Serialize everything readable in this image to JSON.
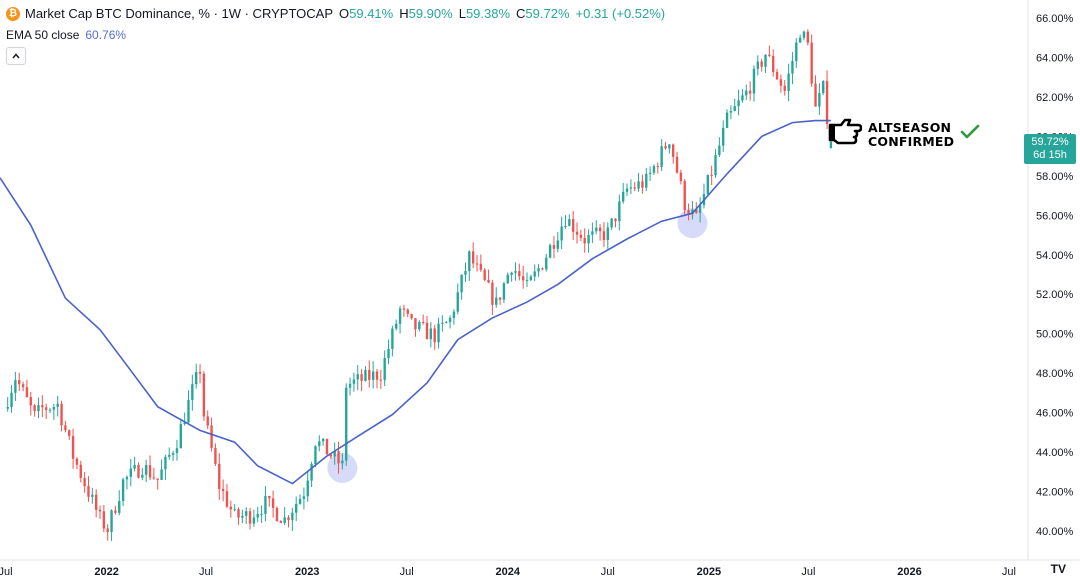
{
  "header": {
    "coin_symbol": "₿",
    "title": "Market Cap BTC Dominance, % · 1W · CRYPTOCAP",
    "ohlc": [
      {
        "label": "O",
        "value": "59.41%"
      },
      {
        "label": "H",
        "value": "59.90%"
      },
      {
        "label": "L",
        "value": "59.38%"
      },
      {
        "label": "C",
        "value": "59.72%"
      }
    ],
    "change": "+0.31 (+0.52%)"
  },
  "indicator": {
    "label": "EMA 50 close",
    "value": "60.76%"
  },
  "collapse_icon": "chevron-up-icon",
  "price_tag": {
    "price": "59.72%",
    "countdown": "6d 15h"
  },
  "annotation": {
    "line1": "ALTSEASON",
    "line2": "CONFIRMED",
    "icon": "pointing-hand-icon",
    "check_icon": "check-mark-icon"
  },
  "footer_logo": "TV",
  "colors": {
    "up": "#26a69a",
    "down": "#ef5350",
    "ema": "#4a62c9",
    "highlight": "#c9cdf5",
    "check": "#2e9a3a"
  },
  "chart_data": {
    "type": "candlestick",
    "interval": "1W",
    "ylim": [
      39.0,
      66.5
    ],
    "y_ticks": [
      "40.00%",
      "42.00%",
      "44.00%",
      "46.00%",
      "48.00%",
      "50.00%",
      "52.00%",
      "54.00%",
      "56.00%",
      "58.00%",
      "60.00%",
      "62.00%",
      "64.00%",
      "66.00%"
    ],
    "x_range": [
      "2021-06-21",
      "2026-08-01"
    ],
    "x_ticks": [
      {
        "label": "Jul",
        "date": "2021-07-01"
      },
      {
        "label": "2022",
        "date": "2022-01-01"
      },
      {
        "label": "Jul",
        "date": "2022-07-01"
      },
      {
        "label": "2023",
        "date": "2023-01-01"
      },
      {
        "label": "Jul",
        "date": "2023-07-01"
      },
      {
        "label": "2024",
        "date": "2024-01-01"
      },
      {
        "label": "Jul",
        "date": "2024-07-01"
      },
      {
        "label": "2025",
        "date": "2025-01-01"
      },
      {
        "label": "Jul",
        "date": "2025-07-01"
      },
      {
        "label": "2026",
        "date": "2026-01-01"
      },
      {
        "label": "Jul",
        "date": "2026-07-01"
      }
    ],
    "grid": false,
    "close_path": [
      [
        "2021-06-28",
        46.2
      ],
      [
        "2021-07-19",
        47.8
      ],
      [
        "2021-08-23",
        45.8
      ],
      [
        "2021-09-06",
        46.2
      ],
      [
        "2021-10-04",
        46.4
      ],
      [
        "2021-11-01",
        43.8
      ],
      [
        "2021-12-20",
        40.6
      ],
      [
        "2022-01-03",
        40.1
      ],
      [
        "2022-01-31",
        42.5
      ],
      [
        "2022-03-07",
        43.3
      ],
      [
        "2022-04-04",
        42.6
      ],
      [
        "2022-05-09",
        44.6
      ],
      [
        "2022-06-06",
        47.1
      ],
      [
        "2022-06-20",
        48.2
      ],
      [
        "2022-06-27",
        45.9
      ],
      [
        "2022-07-25",
        42.3
      ],
      [
        "2022-08-22",
        40.7
      ],
      [
        "2022-09-19",
        40.8
      ],
      [
        "2022-10-17",
        41.4
      ],
      [
        "2022-11-21",
        40.6
      ],
      [
        "2022-12-26",
        42.0
      ],
      [
        "2023-01-16",
        44.6
      ],
      [
        "2023-03-06",
        43.3
      ],
      [
        "2023-03-13",
        47.4
      ],
      [
        "2023-05-15",
        48.0
      ],
      [
        "2023-06-19",
        51.2
      ],
      [
        "2023-07-10",
        50.4
      ],
      [
        "2023-08-21",
        49.9
      ],
      [
        "2023-09-18",
        50.7
      ],
      [
        "2023-10-23",
        53.9
      ],
      [
        "2023-12-11",
        51.5
      ],
      [
        "2024-01-08",
        53.5
      ],
      [
        "2024-02-05",
        52.3
      ],
      [
        "2024-03-04",
        53.6
      ],
      [
        "2024-04-15",
        55.9
      ],
      [
        "2024-05-20",
        54.8
      ],
      [
        "2024-07-01",
        55.1
      ],
      [
        "2024-08-05",
        57.3
      ],
      [
        "2024-09-09",
        57.7
      ],
      [
        "2024-10-21",
        59.9
      ],
      [
        "2024-11-18",
        56.6
      ],
      [
        "2024-12-09",
        55.8
      ],
      [
        "2025-01-06",
        58.2
      ],
      [
        "2025-02-03",
        60.8
      ],
      [
        "2025-03-10",
        62.2
      ],
      [
        "2025-04-14",
        64.2
      ],
      [
        "2025-05-19",
        62.3
      ],
      [
        "2025-06-16",
        65.4
      ],
      [
        "2025-06-30",
        64.6
      ],
      [
        "2025-07-14",
        61.4
      ],
      [
        "2025-07-28",
        62.4
      ],
      [
        "2025-08-11",
        59.7
      ]
    ],
    "series": [
      {
        "name": "EMA 50 close",
        "type": "line",
        "points": [
          [
            "2021-06-21",
            57.9
          ],
          [
            "2021-08-16",
            55.5
          ],
          [
            "2021-10-18",
            51.8
          ],
          [
            "2021-12-20",
            50.2
          ],
          [
            "2022-02-07",
            48.4
          ],
          [
            "2022-04-04",
            46.3
          ],
          [
            "2022-06-20",
            45.1
          ],
          [
            "2022-08-22",
            44.5
          ],
          [
            "2022-10-03",
            43.3
          ],
          [
            "2022-12-05",
            42.4
          ],
          [
            "2023-02-06",
            43.8
          ],
          [
            "2023-04-03",
            44.8
          ],
          [
            "2023-06-05",
            45.9
          ],
          [
            "2023-08-07",
            47.5
          ],
          [
            "2023-10-02",
            49.7
          ],
          [
            "2023-12-04",
            50.8
          ],
          [
            "2024-02-05",
            51.6
          ],
          [
            "2024-04-01",
            52.5
          ],
          [
            "2024-06-03",
            53.8
          ],
          [
            "2024-08-05",
            54.8
          ],
          [
            "2024-10-07",
            55.7
          ],
          [
            "2024-12-02",
            56.1
          ],
          [
            "2025-02-03",
            58.1
          ],
          [
            "2025-04-07",
            60.0
          ],
          [
            "2025-06-02",
            60.7
          ],
          [
            "2025-07-14",
            60.8
          ],
          [
            "2025-08-11",
            60.8
          ]
        ]
      }
    ],
    "highlights": [
      {
        "date": "2023-03-06",
        "value": 43.2
      },
      {
        "date": "2024-12-02",
        "value": 55.6
      }
    ],
    "last": {
      "open": 59.41,
      "high": 59.9,
      "low": 59.38,
      "close": 59.72
    }
  }
}
